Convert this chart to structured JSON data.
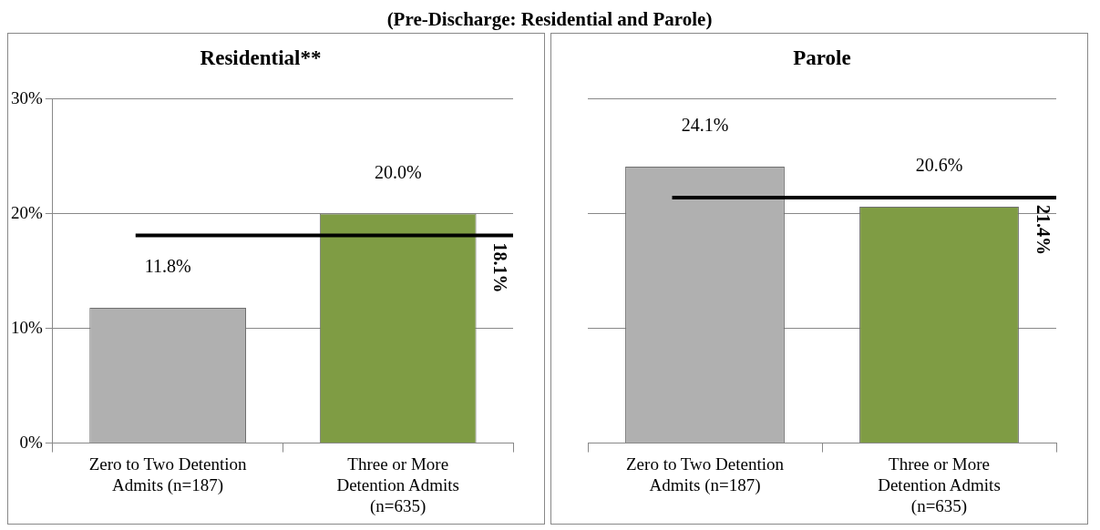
{
  "chart_data": [
    {
      "type": "other",
      "title": "(Pre-Discharge: Residential and Parole)"
    },
    {
      "type": "bar",
      "title": "Residential**",
      "categories": [
        "Zero to Two Detention Admits (n=187)",
        "Three or More Detention Admits (n=635)"
      ],
      "values": [
        11.8,
        20.0
      ],
      "colors": [
        "#b0b0b0",
        "#7f9c44"
      ],
      "value_labels": [
        "11.8%",
        "20.0%"
      ],
      "ylim": [
        0,
        30
      ],
      "yticks": [
        {
          "value": 0,
          "label": "0%"
        },
        {
          "value": 10,
          "label": "10%"
        },
        {
          "value": 20,
          "label": "20%"
        },
        {
          "value": 30,
          "label": "30%"
        }
      ],
      "grid": "y",
      "ref_lines": [
        {
          "axis": "y",
          "value": 18.1,
          "label": "18.1%",
          "color": "#000000"
        }
      ]
    },
    {
      "type": "bar",
      "title": "Parole",
      "categories": [
        "Zero to Two Detention Admits (n=187)",
        "Three or More Detention Admits (n=635)"
      ],
      "values": [
        24.1,
        20.6
      ],
      "colors": [
        "#b0b0b0",
        "#7f9c44"
      ],
      "value_labels": [
        "24.1%",
        "20.6%"
      ],
      "ylim": [
        0,
        30
      ],
      "yticks": [
        {
          "value": 0,
          "label": null
        },
        {
          "value": 10,
          "label": null
        },
        {
          "value": 20,
          "label": null
        },
        {
          "value": 30,
          "label": null
        }
      ],
      "grid": "y",
      "tick_labels": "x",
      "ref_lines": [
        {
          "axis": "y",
          "value": 21.4,
          "label": "21.4%",
          "color": "#000000"
        }
      ]
    }
  ]
}
